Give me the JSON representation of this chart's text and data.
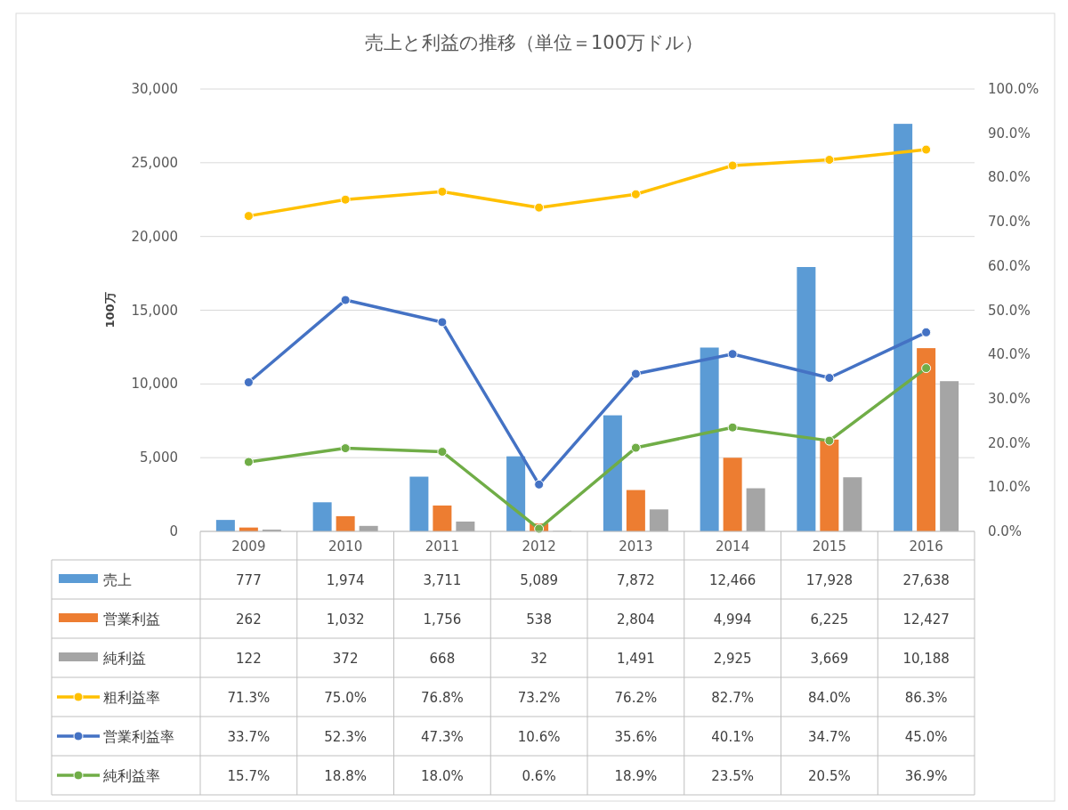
{
  "chart_data": {
    "type": "bar",
    "title": "売上と利益の推移（単位＝100万ドル）",
    "ylabel": "100万",
    "categories": [
      "2009",
      "2010",
      "2011",
      "2012",
      "2013",
      "2014",
      "2015",
      "2016"
    ],
    "series": [
      {
        "name": "売上",
        "color": "#5b9bd5",
        "values": [
          777,
          1974,
          3711,
          5089,
          7872,
          12466,
          17928,
          27638
        ],
        "value_labels": [
          "777",
          "1,974",
          "3,711",
          "5,089",
          "7,872",
          "12,466",
          "17,928",
          "27,638"
        ]
      },
      {
        "name": "営業利益",
        "color": "#ed7d31",
        "values": [
          262,
          1032,
          1756,
          538,
          2804,
          4994,
          6225,
          12427
        ],
        "value_labels": [
          "262",
          "1,032",
          "1,756",
          "538",
          "2,804",
          "4,994",
          "6,225",
          "12,427"
        ]
      },
      {
        "name": "純利益",
        "color": "#a5a5a5",
        "values": [
          122,
          372,
          668,
          32,
          1491,
          2925,
          3669,
          10188
        ],
        "value_labels": [
          "122",
          "372",
          "668",
          "32",
          "1,491",
          "2,925",
          "3,669",
          "10,188"
        ]
      },
      {
        "name": "粗利益率",
        "type": "line",
        "axis": "y2",
        "color": "#ffc000",
        "values": [
          71.3,
          75.0,
          76.8,
          73.2,
          76.2,
          82.7,
          84.0,
          86.3
        ],
        "value_labels": [
          "71.3%",
          "75.0%",
          "76.8%",
          "73.2%",
          "76.2%",
          "82.7%",
          "84.0%",
          "86.3%"
        ]
      },
      {
        "name": "営業利益率",
        "type": "line",
        "axis": "y2",
        "color": "#4472c4",
        "values": [
          33.7,
          52.3,
          47.3,
          10.6,
          35.6,
          40.1,
          34.7,
          45.0
        ],
        "value_labels": [
          "33.7%",
          "52.3%",
          "47.3%",
          "10.6%",
          "35.6%",
          "40.1%",
          "34.7%",
          "45.0%"
        ]
      },
      {
        "name": "純利益率",
        "type": "line",
        "axis": "y2",
        "color": "#70ad47",
        "values": [
          15.7,
          18.8,
          18.0,
          0.6,
          18.9,
          23.5,
          20.5,
          36.9
        ],
        "value_labels": [
          "15.7%",
          "18.8%",
          "18.0%",
          "0.6%",
          "18.9%",
          "23.5%",
          "20.5%",
          "36.9%"
        ]
      }
    ],
    "ylim": [
      0,
      30000
    ],
    "yticks": [
      {
        "value": 0,
        "label": "0"
      },
      {
        "value": 5000,
        "label": "5,000"
      },
      {
        "value": 10000,
        "label": "10,000"
      },
      {
        "value": 15000,
        "label": "15,000"
      },
      {
        "value": 20000,
        "label": "20,000"
      },
      {
        "value": 25000,
        "label": "25,000"
      },
      {
        "value": 30000,
        "label": "30,000"
      }
    ],
    "y2lim": [
      0,
      100
    ],
    "y2ticks": [
      {
        "value": 0,
        "label": "0.0%"
      },
      {
        "value": 10,
        "label": "10.0%"
      },
      {
        "value": 20,
        "label": "20.0%"
      },
      {
        "value": 30,
        "label": "30.0%"
      },
      {
        "value": 40,
        "label": "40.0%"
      },
      {
        "value": 50,
        "label": "50.0%"
      },
      {
        "value": 60,
        "label": "60.0%"
      },
      {
        "value": 70,
        "label": "70.0%"
      },
      {
        "value": 80,
        "label": "80.0%"
      },
      {
        "value": 90,
        "label": "90.0%"
      },
      {
        "value": 100,
        "label": "100.0%"
      }
    ],
    "grid": "y",
    "legend": "bottom",
    "marker": "circle",
    "line_style": "solid"
  }
}
